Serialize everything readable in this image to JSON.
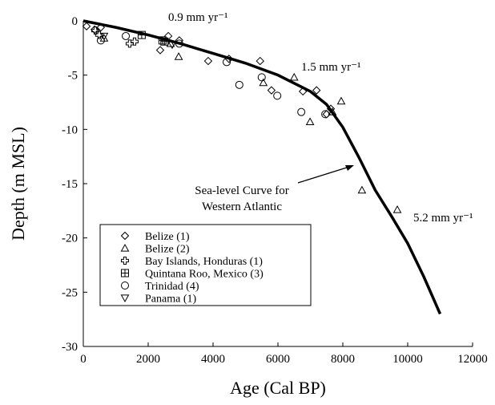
{
  "chart_data": {
    "type": "scatter",
    "xlabel": "Age (Cal BP)",
    "ylabel": "Depth (m MSL)",
    "xlim": [
      0,
      12000
    ],
    "xticks": [
      0,
      2000,
      4000,
      6000,
      8000,
      10000,
      12000
    ],
    "ylim": [
      -30,
      0
    ],
    "yticks": [
      -30,
      -25,
      -20,
      -15,
      -10,
      -5,
      0
    ],
    "legend": "lower-left",
    "color": "#000000",
    "annotations": [
      "0.9 mm yr⁻¹",
      "1.5 mm yr⁻¹",
      "5.2 mm yr⁻¹",
      "Sea-level Curve for",
      "Western Atlantic"
    ],
    "curve": {
      "x": [
        0,
        1000,
        2000,
        3000,
        4000,
        5000,
        6000,
        7000,
        7500,
        8000,
        8500,
        9000,
        9500,
        10000,
        10500,
        11000
      ],
      "y": [
        0,
        -0.6,
        -1.3,
        -2.1,
        -3.0,
        -3.9,
        -5.0,
        -6.5,
        -7.7,
        -9.8,
        -12.6,
        -15.6,
        -18.0,
        -20.5,
        -23.6,
        -27.0
      ]
    },
    "series": [
      {
        "name": "Belize (1)",
        "marker": "diamond",
        "x": [
          100,
          350,
          540,
          2370,
          2620,
          2960,
          3850,
          4490,
          5450,
          5800,
          6770,
          7190,
          7630,
          7500
        ],
        "y": [
          -0.5,
          -0.8,
          -0.6,
          -2.7,
          -1.4,
          -1.8,
          -3.7,
          -3.5,
          -3.7,
          -6.4,
          -6.5,
          -6.4,
          -8.1,
          -8.6
        ]
      },
      {
        "name": "Belize (2)",
        "marker": "triangle",
        "x": [
          640,
          2690,
          2940,
          5550,
          6500,
          6990,
          7680,
          7950,
          8590,
          9680
        ],
        "y": [
          -1.6,
          -2.1,
          -3.3,
          -5.7,
          -5.2,
          -9.3,
          -8.4,
          -7.4,
          -15.6,
          -17.4
        ]
      },
      {
        "name": "Bay Islands, Honduras (1)",
        "marker": "cross",
        "x": [
          370,
          490,
          1580,
          1430
        ],
        "y": [
          -0.9,
          -1.3,
          -1.9,
          -2.1
        ]
      },
      {
        "name": "Quintana Roo, Mexico (3)",
        "marker": "boxplus",
        "x": [
          1800,
          2440,
          2500
        ],
        "y": [
          -1.3,
          -1.8,
          -1.9
        ]
      },
      {
        "name": "Trinidad (4)",
        "marker": "circle",
        "x": [
          540,
          1310,
          2960,
          4420,
          4810,
          5500,
          5980,
          6720,
          7460
        ],
        "y": [
          -1.8,
          -1.4,
          -2.1,
          -3.8,
          -5.9,
          -5.2,
          -6.9,
          -8.4,
          -8.6
        ]
      },
      {
        "name": "Panama (1)",
        "marker": "downtriangle",
        "x": [
          640,
          2740
        ],
        "y": [
          -1.4,
          -2.2
        ]
      }
    ]
  }
}
